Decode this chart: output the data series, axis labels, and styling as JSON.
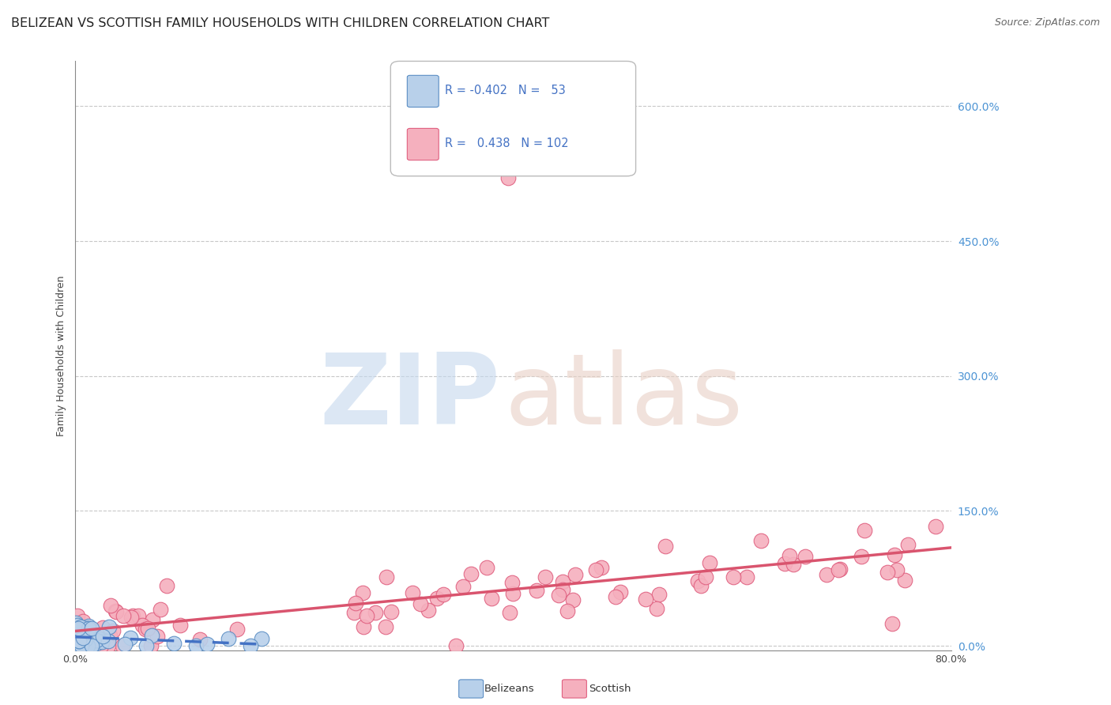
{
  "title": "BELIZEAN VS SCOTTISH FAMILY HOUSEHOLDS WITH CHILDREN CORRELATION CHART",
  "source": "Source: ZipAtlas.com",
  "ylabel": "Family Households with Children",
  "ytick_values": [
    0,
    150,
    300,
    450,
    600
  ],
  "xlim": [
    0,
    80
  ],
  "ylim": [
    0,
    650
  ],
  "ylim_display": [
    -5,
    650
  ],
  "belizean_R": -0.402,
  "belizean_N": 53,
  "scottish_R": 0.438,
  "scottish_N": 102,
  "belizean_color": "#b8d0ea",
  "scottish_color": "#f5b0be",
  "belizean_edge_color": "#5b8ec4",
  "scottish_edge_color": "#e06080",
  "belizean_line_color": "#4472c4",
  "scottish_line_color": "#d9546e",
  "right_tick_color": "#4d94d4",
  "background_color": "#ffffff",
  "grid_color": "#c8c8c8",
  "title_fontsize": 11.5,
  "source_fontsize": 9,
  "axis_label_fontsize": 9,
  "tick_label_fontsize": 9,
  "legend_text_color": "#4472c4",
  "legend_label_color": "#222222"
}
